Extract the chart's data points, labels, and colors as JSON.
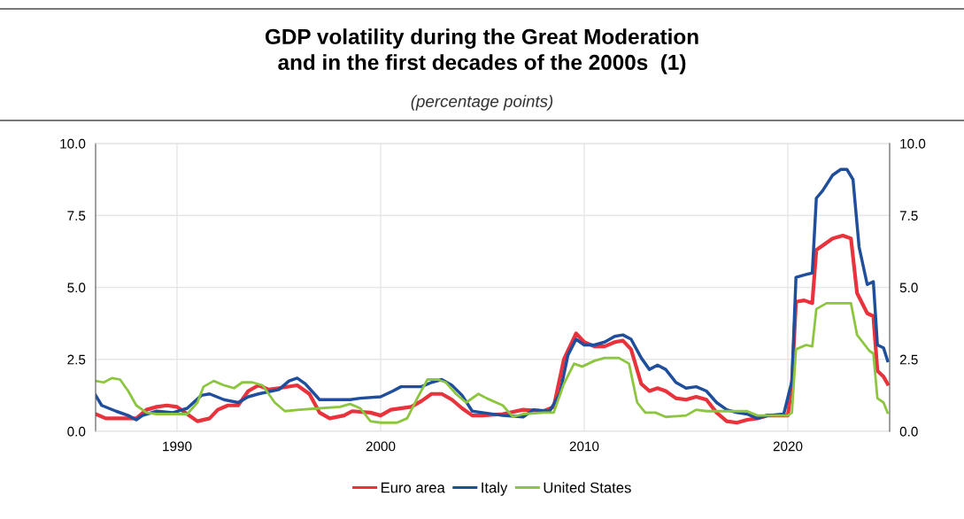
{
  "chart_data": {
    "type": "line",
    "title": "GDP volatility during the Great Moderation\nand in the first decades of the 2000s  (1)",
    "subtitle": "(percentage points)",
    "xlim": [
      1986,
      2025
    ],
    "xticks": [
      1990,
      2000,
      2010,
      2020
    ],
    "ylim": [
      0,
      10
    ],
    "yticks": [
      {
        "value": 0,
        "label": "0.0"
      },
      {
        "value": 2.5,
        "label": "2.5"
      },
      {
        "value": 5,
        "label": "5.0"
      },
      {
        "value": 7.5,
        "label": "7.5"
      },
      {
        "value": 10,
        "label": "10.0"
      }
    ],
    "y2lim": [
      0,
      10
    ],
    "y2ticks": [
      {
        "value": 0,
        "label": "0.0"
      },
      {
        "value": 2.5,
        "label": "2.5"
      },
      {
        "value": 5,
        "label": "5.0"
      },
      {
        "value": 7.5,
        "label": "7.5"
      },
      {
        "value": 10,
        "label": "10.0"
      }
    ],
    "grid": true,
    "legend": "bottom",
    "marker": "none",
    "line_style": "solid",
    "series": [
      {
        "name": "Euro area",
        "color": "#e8323c",
        "x": [
          1986.0,
          1986.5,
          1987.5,
          1988.0,
          1988.5,
          1989.0,
          1989.5,
          1990.0,
          1990.5,
          1991.0,
          1991.6,
          1992.0,
          1992.5,
          1993.0,
          1993.5,
          1994.0,
          1994.5,
          1995.0,
          1995.9,
          1996.5,
          1997.0,
          1997.5,
          1998.2,
          1998.6,
          1999.5,
          2000.0,
          2000.5,
          2001.5,
          2002.0,
          2002.5,
          2003.0,
          2003.5,
          2004.0,
          2004.5,
          2005.0,
          2006.0,
          2007.0,
          2008.0,
          2008.5,
          2009.0,
          2009.6,
          2010.0,
          2010.5,
          2011.0,
          2011.5,
          2011.9,
          2012.3,
          2012.8,
          2013.2,
          2013.6,
          2014.0,
          2014.5,
          2015.0,
          2015.5,
          2016.0,
          2016.5,
          2017.0,
          2017.5,
          2018.0,
          2018.5,
          2019.0,
          2020.0,
          2020.2,
          2020.4,
          2020.8,
          2021.2,
          2021.4,
          2022.2,
          2022.7,
          2023.1,
          2023.4,
          2023.9,
          2024.2,
          2024.4,
          2024.7,
          2024.9
        ],
        "values": [
          0.6,
          0.45,
          0.45,
          0.45,
          0.75,
          0.85,
          0.9,
          0.85,
          0.6,
          0.35,
          0.45,
          0.75,
          0.9,
          0.9,
          1.4,
          1.6,
          1.45,
          1.5,
          1.6,
          1.3,
          0.65,
          0.45,
          0.55,
          0.7,
          0.65,
          0.55,
          0.75,
          0.85,
          1.05,
          1.3,
          1.3,
          1.1,
          0.8,
          0.55,
          0.55,
          0.6,
          0.75,
          0.7,
          0.85,
          2.5,
          3.4,
          3.1,
          2.95,
          2.95,
          3.1,
          3.15,
          2.85,
          1.65,
          1.4,
          1.5,
          1.4,
          1.15,
          1.1,
          1.2,
          1.1,
          0.65,
          0.35,
          0.3,
          0.4,
          0.45,
          0.55,
          0.55,
          1.65,
          4.5,
          4.55,
          4.45,
          6.3,
          6.7,
          6.8,
          6.7,
          4.8,
          4.1,
          4.0,
          2.1,
          1.9,
          1.65
        ]
      },
      {
        "name": "Italy",
        "color": "#1f4e9c",
        "x": [
          1986.0,
          1986.3,
          1987.0,
          1987.6,
          1988.0,
          1988.3,
          1989.0,
          1989.8,
          1990.5,
          1991.2,
          1991.6,
          1992.3,
          1993.0,
          1993.5,
          1994.0,
          1995.0,
          1995.5,
          1995.9,
          1996.3,
          1997.0,
          1997.5,
          1998.0,
          1998.5,
          1999.0,
          2000.0,
          2000.6,
          2001.0,
          2002.0,
          2002.5,
          2003.0,
          2003.5,
          2004.0,
          2004.5,
          2005.0,
          2006.0,
          2007.0,
          2007.5,
          2008.3,
          2008.8,
          2009.2,
          2009.6,
          2010.0,
          2010.5,
          2011.0,
          2011.5,
          2011.9,
          2012.3,
          2012.8,
          2013.2,
          2013.6,
          2014.0,
          2014.5,
          2015.0,
          2015.5,
          2016.0,
          2016.5,
          2017.0,
          2017.5,
          2018.0,
          2018.5,
          2019.0,
          2019.8,
          2020.2,
          2020.4,
          2020.9,
          2021.2,
          2021.4,
          2021.7,
          2022.2,
          2022.6,
          2022.9,
          2023.2,
          2023.5,
          2023.9,
          2024.2,
          2024.4,
          2024.7,
          2024.9
        ],
        "values": [
          1.25,
          0.9,
          0.7,
          0.55,
          0.4,
          0.55,
          0.7,
          0.65,
          0.8,
          1.25,
          1.3,
          1.1,
          1.0,
          1.2,
          1.3,
          1.45,
          1.75,
          1.85,
          1.65,
          1.1,
          1.1,
          1.1,
          1.1,
          1.15,
          1.2,
          1.4,
          1.55,
          1.55,
          1.7,
          1.8,
          1.6,
          1.25,
          0.7,
          0.65,
          0.55,
          0.5,
          0.75,
          0.7,
          1.3,
          2.65,
          3.2,
          3.0,
          3.0,
          3.1,
          3.3,
          3.35,
          3.2,
          2.55,
          2.15,
          2.3,
          2.15,
          1.7,
          1.5,
          1.55,
          1.4,
          1.0,
          0.75,
          0.65,
          0.6,
          0.45,
          0.55,
          0.6,
          1.75,
          5.35,
          5.45,
          5.5,
          8.1,
          8.35,
          8.9,
          9.1,
          9.1,
          8.75,
          6.4,
          5.1,
          5.2,
          3.0,
          2.9,
          2.45
        ]
      },
      {
        "name": "United States",
        "color": "#8cc63f",
        "x": [
          1986.0,
          1986.4,
          1986.8,
          1987.2,
          1987.6,
          1988.0,
          1988.5,
          1989.0,
          1990.0,
          1990.5,
          1991.0,
          1991.3,
          1991.8,
          1992.3,
          1992.8,
          1993.2,
          1993.7,
          1994.2,
          1994.8,
          1995.3,
          1996.0,
          1997.0,
          1998.0,
          1998.5,
          1999.0,
          1999.5,
          2000.0,
          2000.8,
          2001.3,
          2001.8,
          2002.3,
          2002.8,
          2003.2,
          2003.7,
          2004.2,
          2004.8,
          2005.2,
          2006.0,
          2006.5,
          2007.0,
          2008.0,
          2008.5,
          2009.0,
          2009.5,
          2009.9,
          2010.5,
          2011.0,
          2011.7,
          2012.2,
          2012.6,
          2013.0,
          2013.5,
          2014.0,
          2015.0,
          2015.5,
          2016.0,
          2017.0,
          2018.0,
          2018.5,
          2019.5,
          2020.0,
          2020.2,
          2020.4,
          2020.9,
          2021.2,
          2021.4,
          2021.9,
          2023.1,
          2023.4,
          2024.0,
          2024.2,
          2024.4,
          2024.7,
          2024.9
        ],
        "values": [
          1.75,
          1.7,
          1.85,
          1.8,
          1.4,
          0.9,
          0.65,
          0.6,
          0.6,
          0.6,
          1.0,
          1.55,
          1.75,
          1.6,
          1.5,
          1.7,
          1.7,
          1.6,
          1.0,
          0.7,
          0.75,
          0.8,
          0.85,
          0.95,
          0.8,
          0.35,
          0.3,
          0.3,
          0.45,
          1.15,
          1.8,
          1.8,
          1.7,
          1.3,
          1.0,
          1.3,
          1.15,
          0.9,
          0.5,
          0.6,
          0.65,
          0.65,
          1.65,
          2.35,
          2.25,
          2.45,
          2.55,
          2.55,
          2.35,
          1.0,
          0.65,
          0.65,
          0.5,
          0.55,
          0.75,
          0.7,
          0.7,
          0.7,
          0.55,
          0.55,
          0.55,
          0.65,
          2.85,
          3.0,
          2.95,
          4.25,
          4.45,
          4.45,
          3.35,
          2.8,
          2.7,
          1.15,
          1.0,
          0.65
        ]
      }
    ]
  }
}
